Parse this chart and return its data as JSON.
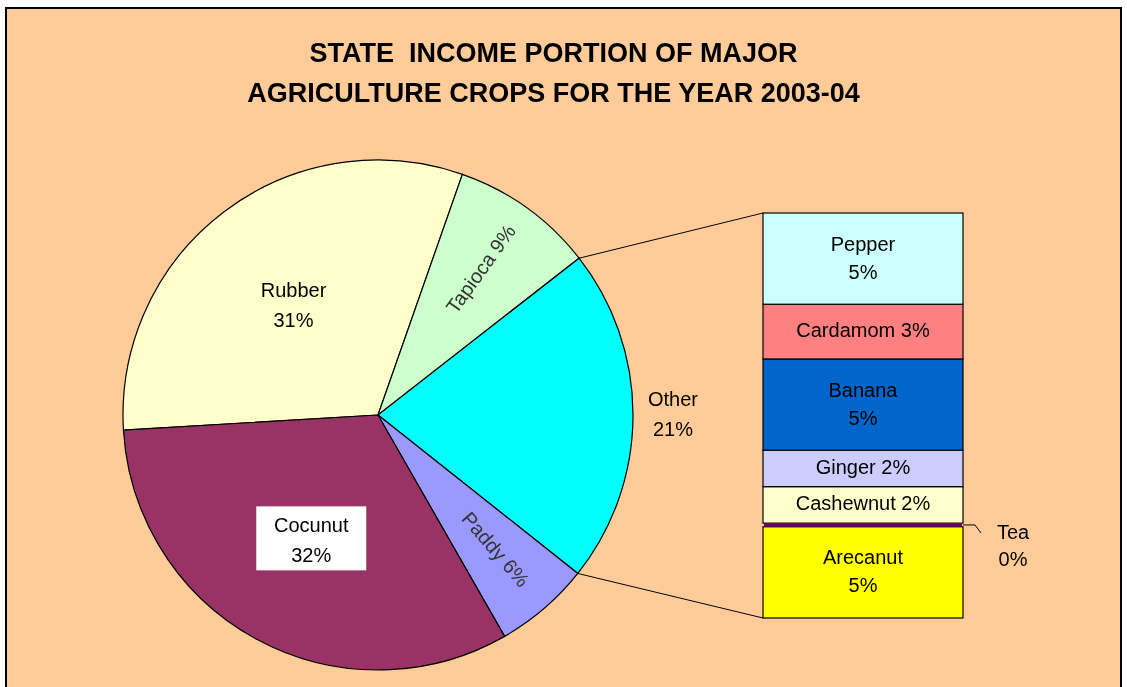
{
  "chart_data": [
    {
      "type": "pie",
      "title": "STATE  INCOME PORTION OF MAJOR\nAGRICULTURE CROPS FOR THE YEAR 2003-04",
      "categories": [
        "Rubber",
        "Tapioca",
        "Other",
        "Paddy",
        "Cocunut"
      ],
      "values": [
        31,
        9,
        21,
        6,
        32
      ],
      "colors": [
        "#ffffcc",
        "#ccffcc",
        "#00ffff",
        "#9999ff",
        "#993366"
      ],
      "value_labels": [
        "31%",
        "9%",
        "21%",
        "6%",
        "32%"
      ]
    },
    {
      "type": "bar",
      "stacked": true,
      "categories": [
        null
      ],
      "series": [
        {
          "name": "Arecanut",
          "color": "#ffff00",
          "values": [
            5
          ],
          "value_labels": [
            "5%"
          ]
        },
        {
          "name": "Tea",
          "color": "#660066",
          "values": [
            0.2
          ],
          "value_labels": [
            "0%"
          ]
        },
        {
          "name": "Cashewnut",
          "color": "#ffffcc",
          "values": [
            2
          ],
          "value_labels": [
            "2%"
          ]
        },
        {
          "name": "Ginger",
          "color": "#ccccff",
          "values": [
            2
          ],
          "value_labels": [
            "2%"
          ]
        },
        {
          "name": "Banana",
          "color": "#0066cc",
          "values": [
            5
          ],
          "value_labels": [
            "5%"
          ]
        },
        {
          "name": "Cardamom",
          "color": "#ff8080",
          "values": [
            3
          ],
          "value_labels": [
            "3%"
          ]
        },
        {
          "name": "Pepper",
          "color": "#ccffff",
          "values": [
            5
          ],
          "value_labels": [
            "5%"
          ]
        }
      ]
    }
  ]
}
